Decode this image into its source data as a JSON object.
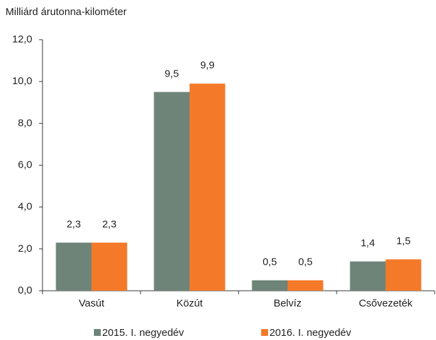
{
  "chart_data": {
    "type": "bar",
    "y_label": "Milliárd árutonna-kilométer",
    "categories": [
      "Vasút",
      "Közút",
      "Belvíz",
      "Csővezeték"
    ],
    "series": [
      {
        "name": "2015. I. negyedév",
        "color": "#6e8479",
        "values": [
          2.3,
          9.5,
          0.5,
          1.4
        ],
        "value_labels": [
          "2,3",
          "9,5",
          "0,5",
          "1,4"
        ]
      },
      {
        "name": "2016. I. negyedév",
        "color": "#f47a2a",
        "values": [
          2.3,
          9.9,
          0.5,
          1.5
        ],
        "value_labels": [
          "2,3",
          "9,9",
          "0,5",
          "1,5"
        ]
      }
    ],
    "ylim": [
      0,
      12
    ],
    "yticks": [
      {
        "value": 0,
        "label": "0,0"
      },
      {
        "value": 2,
        "label": "2,0"
      },
      {
        "value": 4,
        "label": "4,0"
      },
      {
        "value": 6,
        "label": "6,0"
      },
      {
        "value": 8,
        "label": "8,0"
      },
      {
        "value": 10,
        "label": "10,0"
      },
      {
        "value": 12,
        "label": "12,0"
      }
    ],
    "grid": false,
    "legend": "bottom"
  }
}
